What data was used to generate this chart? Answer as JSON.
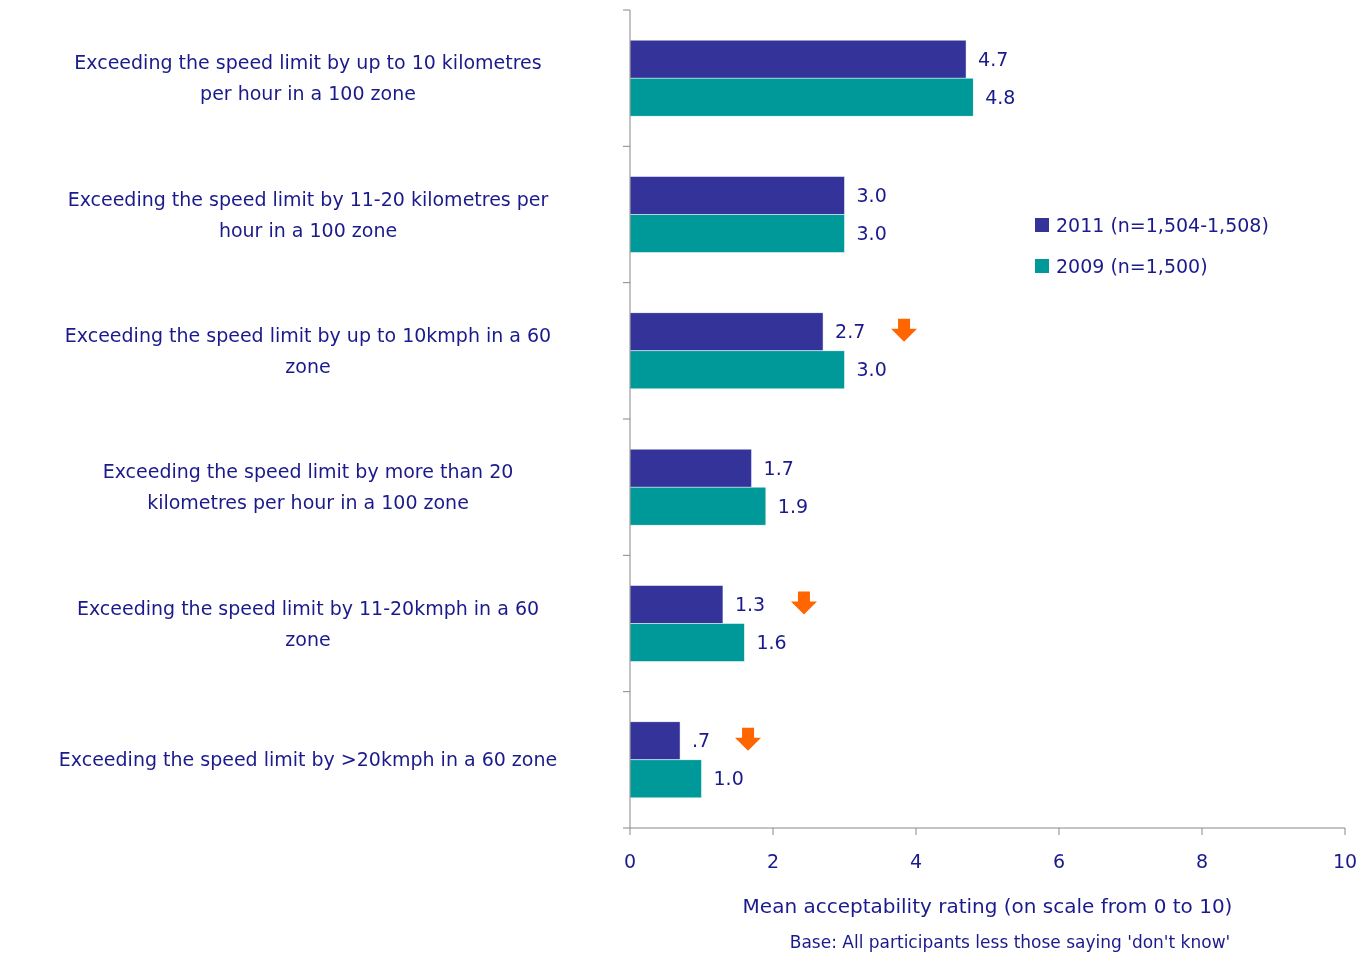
{
  "chart_data": {
    "type": "bar",
    "orientation": "horizontal",
    "categories": [
      "Exceeding the speed limit by up to 10 kilometres per hour in a 100 zone",
      "Exceeding the speed limit by 11-20 kilometres per hour in a 100 zone",
      "Exceeding the speed limit by up to 10kmph in a 60 zone",
      "Exceeding the speed limit by more than 20 kilometres per hour in a 100 zone",
      "Exceeding the speed limit by 11-20kmph in a 60 zone",
      "Exceeding the speed limit by >20kmph in a 60 zone"
    ],
    "series": [
      {
        "name": "2011 (n=1,504-1,508)",
        "color": "#333399",
        "values": [
          4.7,
          3.0,
          2.7,
          1.7,
          1.3,
          0.7
        ],
        "value_labels": [
          "4.7",
          "3.0",
          "2.7",
          "1.7",
          "1.3",
          ".7"
        ]
      },
      {
        "name": "2009 (n=1,500)",
        "color": "#009999",
        "values": [
          4.8,
          3.0,
          3.0,
          1.9,
          1.6,
          1.0
        ],
        "value_labels": [
          "4.8",
          "3.0",
          "3.0",
          "1.9",
          "1.6",
          "1.0"
        ]
      }
    ],
    "xlim": [
      0,
      10
    ],
    "xticks": [
      0,
      2,
      4,
      6,
      8,
      10
    ],
    "xlabel": "Mean acceptability rating (on scale from 0 to 10)",
    "grid": false,
    "legend": "right",
    "annotations": [
      "Base: All participants less those saying 'don't know'"
    ]
  }
}
